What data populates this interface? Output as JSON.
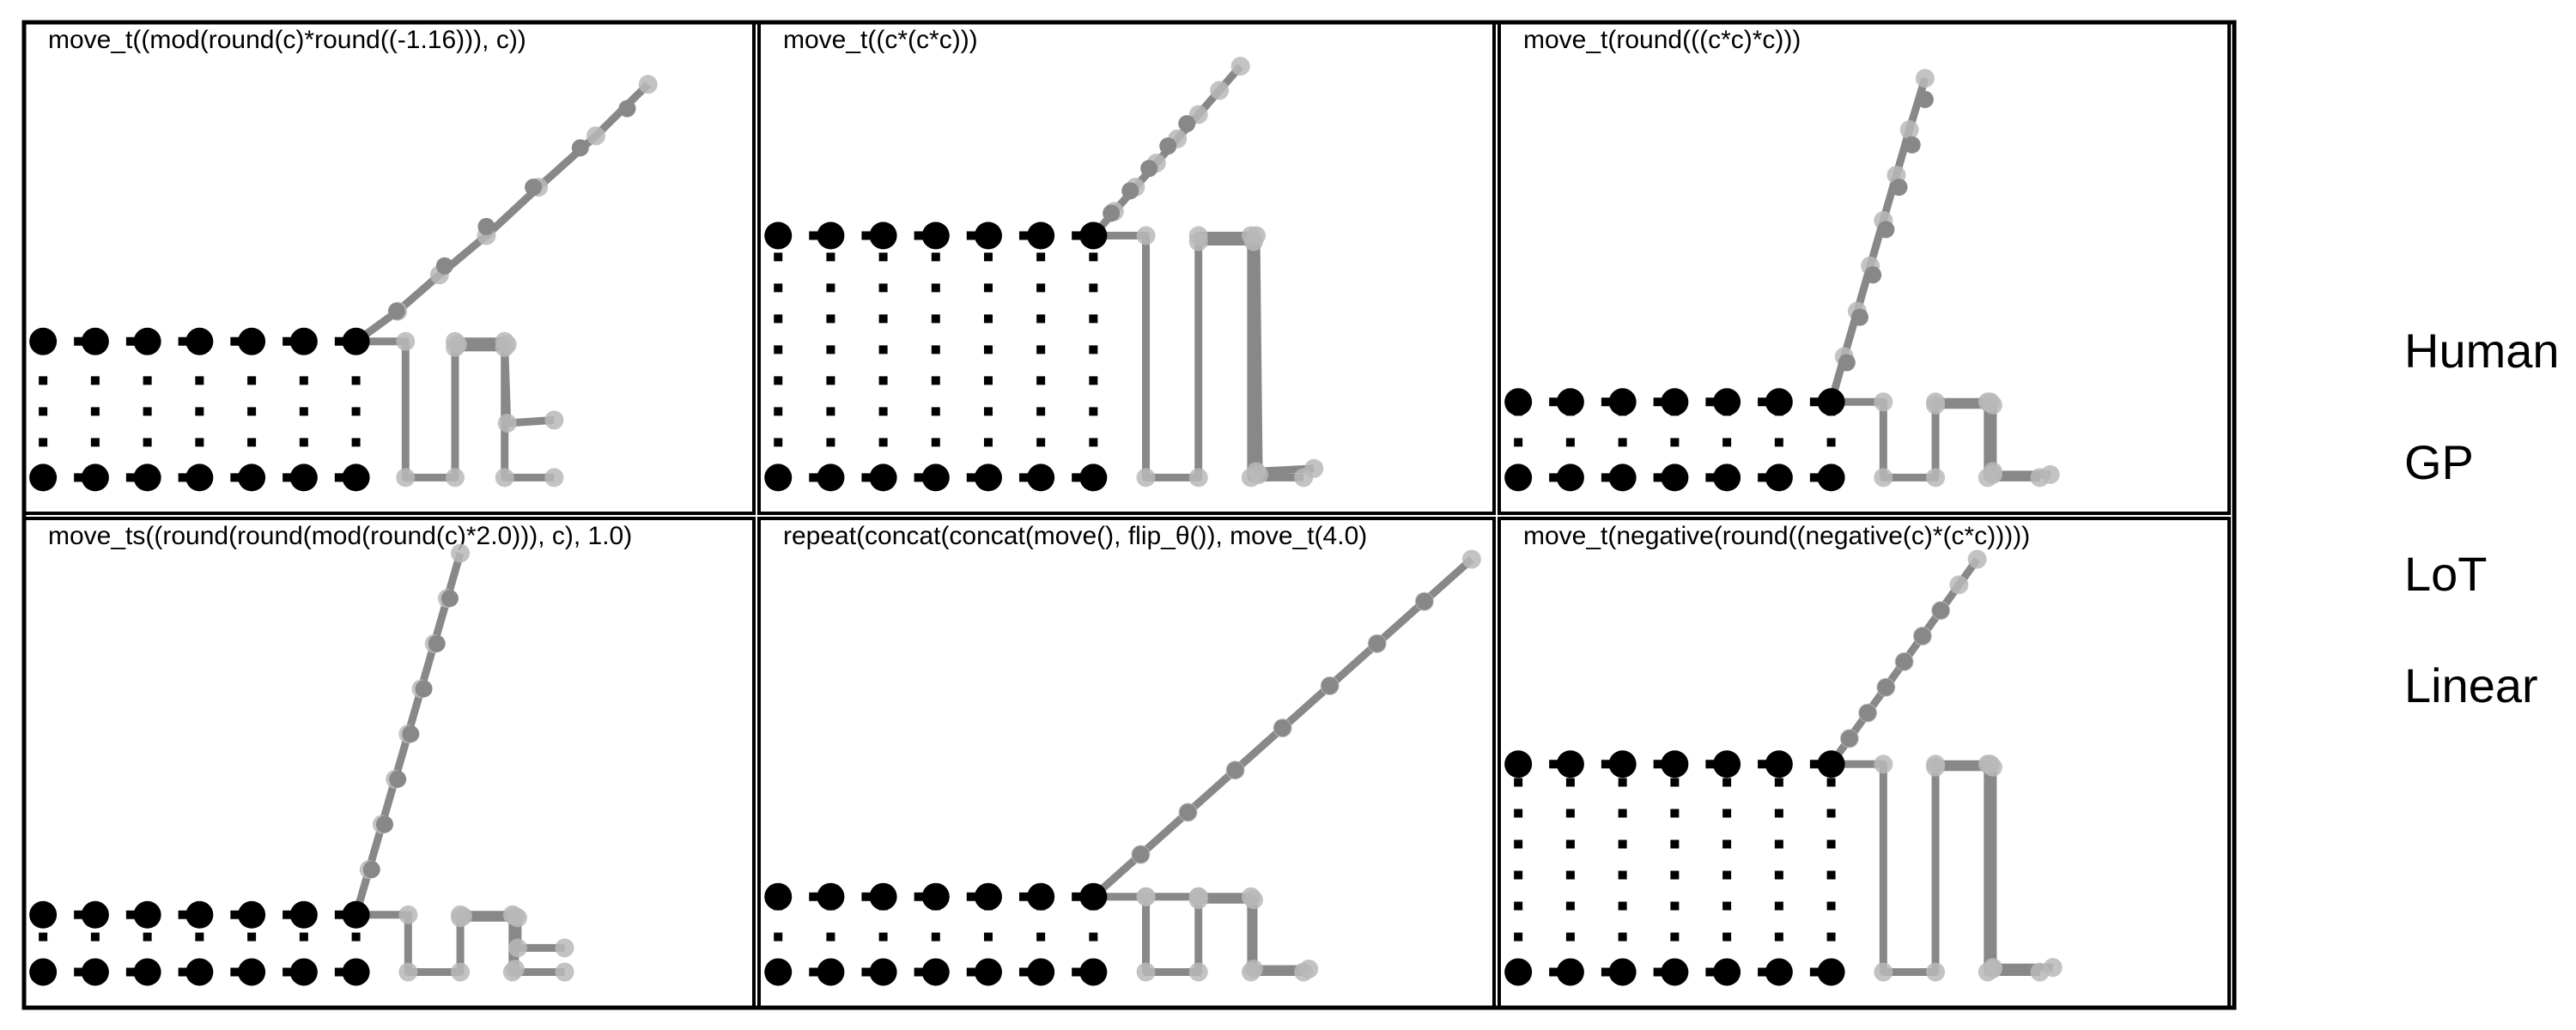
{
  "legend": [
    "Human",
    "GP",
    "LoT",
    "Linear"
  ],
  "colors": {
    "human": "#000000",
    "model": "#888888",
    "model_light": "#b8b8b8",
    "frame": "#000000"
  },
  "panels": [
    {
      "title": "move_t((mod(round(c)*round((-1.16))), c))",
      "human_top": 4.5,
      "human_diagonal": [
        [
          6.78,
          5.5
        ],
        [
          7.7,
          7.0
        ],
        [
          8.5,
          8.3
        ],
        [
          9.4,
          9.6
        ],
        [
          10.3,
          10.9
        ],
        [
          11.2,
          12.2
        ]
      ],
      "model_path": [
        [
          6.0,
          4.5
        ],
        [
          6.95,
          4.5
        ],
        [
          6.95,
          0
        ],
        [
          7.9,
          0
        ],
        [
          7.9,
          4.5
        ],
        [
          8.85,
          4.5
        ],
        [
          8.85,
          0
        ],
        [
          9.8,
          0
        ]
      ],
      "model_path2": [
        [
          7.9,
          4.3
        ],
        [
          8.85,
          4.3
        ],
        [
          8.9,
          1.8
        ],
        [
          9.8,
          1.9
        ]
      ],
      "model_path3": [
        [
          7.95,
          4.4
        ],
        [
          8.9,
          4.4
        ]
      ],
      "model_diagonal": [
        [
          6.0,
          4.5
        ],
        [
          6.8,
          5.5
        ],
        [
          7.6,
          6.7
        ],
        [
          8.5,
          8.0
        ],
        [
          9.5,
          9.6
        ],
        [
          10.6,
          11.3
        ],
        [
          11.6,
          13.0
        ]
      ],
      "dash_rows": [
        2,
        3
      ]
    },
    {
      "title": "move_t((c*(c*c)))",
      "human_top": 8.0,
      "human_diagonal": [
        [
          6.34,
          8.74
        ],
        [
          6.7,
          9.48
        ],
        [
          7.06,
          10.22
        ],
        [
          7.42,
          10.96
        ],
        [
          7.78,
          11.7
        ]
      ],
      "model_path": [
        [
          6.0,
          8.0
        ],
        [
          7.0,
          8.0
        ],
        [
          7.0,
          0
        ],
        [
          8.0,
          0
        ],
        [
          8.0,
          8.0
        ],
        [
          9.0,
          8.0
        ],
        [
          9.0,
          0
        ],
        [
          10.0,
          0
        ]
      ],
      "model_path2": [
        [
          8.0,
          7.8
        ],
        [
          9.05,
          7.8
        ],
        [
          9.1,
          0.2
        ],
        [
          10.2,
          0.3
        ]
      ],
      "model_path3": [
        [
          9.1,
          8.0
        ],
        [
          9.15,
          0.1
        ]
      ],
      "model_diagonal": [
        [
          6.0,
          8.0
        ],
        [
          6.4,
          8.8
        ],
        [
          6.8,
          9.6
        ],
        [
          7.2,
          10.4
        ],
        [
          7.6,
          11.2
        ],
        [
          8.0,
          12.0
        ],
        [
          8.4,
          12.8
        ],
        [
          8.8,
          13.6
        ]
      ],
      "dash_rows": [
        2,
        3,
        4,
        5,
        6,
        7
      ]
    },
    {
      "title": "move_t(round(((c*c)*c)))",
      "human_top": 2.5,
      "human_diagonal": [
        [
          6.3,
          3.8
        ],
        [
          6.55,
          5.3
        ],
        [
          6.8,
          6.7
        ],
        [
          7.05,
          8.2
        ],
        [
          7.3,
          9.6
        ],
        [
          7.55,
          11.0
        ],
        [
          7.8,
          12.5
        ]
      ],
      "model_path": [
        [
          6.0,
          2.5
        ],
        [
          7.0,
          2.5
        ],
        [
          7.0,
          0
        ],
        [
          8.0,
          0
        ],
        [
          8.0,
          2.5
        ],
        [
          9.0,
          2.5
        ],
        [
          9.0,
          0
        ],
        [
          10.0,
          0
        ]
      ],
      "model_path2": [
        [
          8.0,
          2.4
        ],
        [
          9.1,
          2.4
        ],
        [
          9.1,
          0.1
        ],
        [
          10.2,
          0.1
        ]
      ],
      "model_path3": [
        [
          9.05,
          2.5
        ],
        [
          9.1,
          0.2
        ]
      ],
      "model_diagonal": [
        [
          6.0,
          2.5
        ],
        [
          6.25,
          4.0
        ],
        [
          6.5,
          5.5
        ],
        [
          6.75,
          7.0
        ],
        [
          7.0,
          8.5
        ],
        [
          7.25,
          10.0
        ],
        [
          7.5,
          11.5
        ],
        [
          7.8,
          13.2
        ]
      ],
      "dash_rows": [
        1
      ]
    },
    {
      "title": "move_ts((round(round(mod(round(c)*2.0))), c), 1.0)",
      "human_top": 1.9,
      "human_diagonal": [
        [
          6.3,
          3.4
        ],
        [
          6.55,
          4.9
        ],
        [
          6.8,
          6.4
        ],
        [
          7.05,
          7.9
        ],
        [
          7.3,
          9.4
        ],
        [
          7.55,
          10.9
        ],
        [
          7.8,
          12.4
        ]
      ],
      "model_path": [
        [
          6.0,
          1.9
        ],
        [
          7.0,
          1.9
        ],
        [
          7.0,
          0
        ],
        [
          8.0,
          0
        ],
        [
          8.0,
          1.9
        ],
        [
          9.0,
          1.9
        ],
        [
          9.0,
          0
        ],
        [
          10.0,
          0
        ]
      ],
      "model_path2": [
        [
          8.0,
          1.8
        ],
        [
          9.1,
          1.8
        ],
        [
          9.1,
          0.8
        ],
        [
          10.0,
          0.8
        ]
      ],
      "model_path3": [
        [
          8.05,
          1.85
        ],
        [
          9.05,
          1.85
        ],
        [
          9.05,
          0.1
        ]
      ],
      "model_diagonal": [
        [
          6.0,
          1.9
        ],
        [
          6.25,
          3.4
        ],
        [
          6.5,
          4.9
        ],
        [
          6.75,
          6.4
        ],
        [
          7.0,
          7.9
        ],
        [
          7.25,
          9.4
        ],
        [
          7.5,
          10.9
        ],
        [
          7.75,
          12.4
        ],
        [
          8.0,
          13.9
        ]
      ],
      "dash_rows": [
        1
      ]
    },
    {
      "title": "repeat(concat(concat(move(), flip_θ()), move_t(4.0)",
      "human_top": 2.5,
      "human_diagonal": [
        [
          6.9,
          3.9
        ],
        [
          7.8,
          5.3
        ],
        [
          8.7,
          6.7
        ],
        [
          9.6,
          8.1
        ],
        [
          10.5,
          9.5
        ],
        [
          11.4,
          10.9
        ],
        [
          12.3,
          12.3
        ]
      ],
      "model_path": [
        [
          6.0,
          2.5
        ],
        [
          7.0,
          2.5
        ],
        [
          7.0,
          0
        ],
        [
          8.0,
          0
        ],
        [
          8.0,
          2.5
        ],
        [
          9.0,
          2.5
        ],
        [
          9.0,
          0
        ],
        [
          10.0,
          0
        ]
      ],
      "model_path2": [
        [
          8.0,
          2.4
        ],
        [
          9.05,
          2.4
        ],
        [
          9.05,
          0.1
        ],
        [
          10.1,
          0.1
        ]
      ],
      "model_path3": [
        [
          7.0,
          2.5
        ],
        [
          8.0,
          2.5
        ]
      ],
      "model_diagonal": [
        [
          6.0,
          2.5
        ],
        [
          6.9,
          3.9
        ],
        [
          7.8,
          5.3
        ],
        [
          8.7,
          6.7
        ],
        [
          9.6,
          8.1
        ],
        [
          10.5,
          9.5
        ],
        [
          11.4,
          10.9
        ],
        [
          12.3,
          12.3
        ],
        [
          13.2,
          13.7
        ]
      ],
      "dash_rows": [
        1
      ]
    },
    {
      "title": "move_t(negative(round((negative(c)*(c*c)))))",
      "human_top": 6.9,
      "human_diagonal": [
        [
          6.35,
          7.75
        ],
        [
          6.7,
          8.6
        ],
        [
          7.05,
          9.45
        ],
        [
          7.4,
          10.3
        ],
        [
          7.75,
          11.15
        ],
        [
          8.1,
          12.0
        ]
      ],
      "model_path": [
        [
          6.0,
          6.9
        ],
        [
          7.0,
          6.9
        ],
        [
          7.0,
          0
        ],
        [
          8.0,
          0
        ],
        [
          8.0,
          6.9
        ],
        [
          9.0,
          6.9
        ],
        [
          9.0,
          0
        ],
        [
          10.0,
          0
        ]
      ],
      "model_path2": [
        [
          8.0,
          6.8
        ],
        [
          9.1,
          6.8
        ],
        [
          9.1,
          0.15
        ],
        [
          10.25,
          0.15
        ]
      ],
      "model_path3": [
        [
          9.05,
          6.9
        ],
        [
          9.1,
          0.1
        ]
      ],
      "model_diagonal": [
        [
          6.0,
          6.9
        ],
        [
          6.35,
          7.75
        ],
        [
          6.7,
          8.6
        ],
        [
          7.05,
          9.45
        ],
        [
          7.4,
          10.3
        ],
        [
          7.75,
          11.15
        ],
        [
          8.1,
          12.0
        ],
        [
          8.45,
          12.85
        ],
        [
          8.8,
          13.7
        ]
      ],
      "dash_rows": [
        1,
        2,
        3,
        4,
        5,
        6
      ]
    }
  ]
}
